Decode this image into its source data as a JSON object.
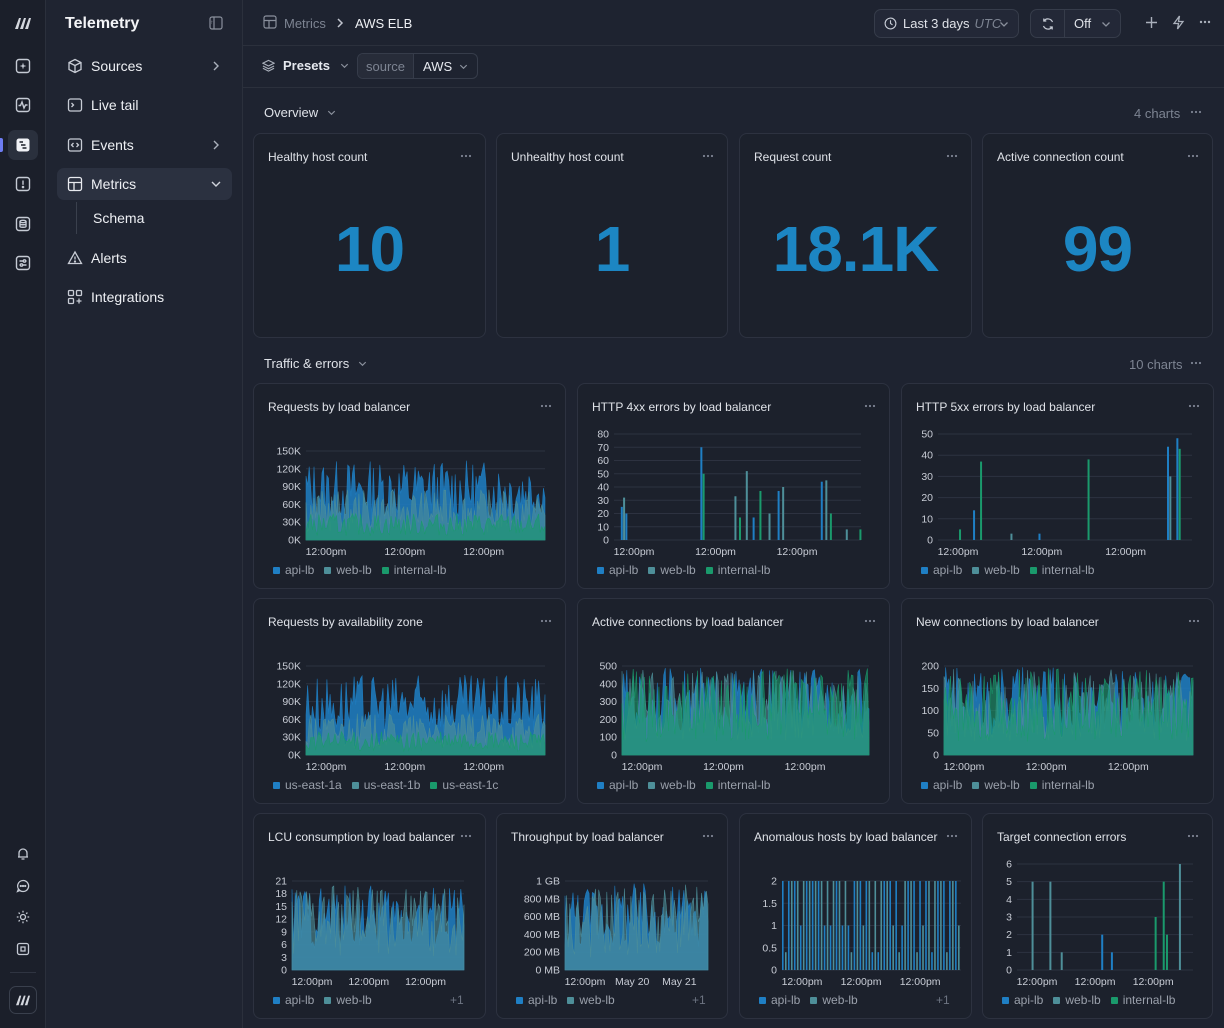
{
  "colors": {
    "accent": "#1c86c3",
    "api": "#1f7fc4",
    "web": "#4e8f99",
    "internal": "#1a9a6c",
    "grid": "#2d3240",
    "tick": "#c9cdd6"
  },
  "sidebar": {
    "title": "Telemetry",
    "items": [
      {
        "label": "Sources",
        "icon": "cube-icon",
        "chevron": "right"
      },
      {
        "label": "Live tail",
        "icon": "terminal-icon"
      },
      {
        "label": "Events",
        "icon": "code-icon",
        "chevron": "right"
      },
      {
        "label": "Metrics",
        "icon": "dashboard-icon",
        "chevron": "down",
        "active": true
      },
      {
        "label": "Schema",
        "sub": true
      },
      {
        "label": "Alerts",
        "icon": "warning-icon"
      },
      {
        "label": "Integrations",
        "icon": "integrations-icon"
      }
    ]
  },
  "breadcrumb": {
    "parent": "Metrics",
    "current": "AWS ELB"
  },
  "toolbar": {
    "time_range": "Last 3 days",
    "timezone": "UTC",
    "refresh": "Off"
  },
  "filters": {
    "presets": "Presets",
    "filter_key": "source",
    "filter_value": "AWS"
  },
  "overview": {
    "title": "Overview",
    "count": "4 charts",
    "stats": [
      {
        "title": "Healthy host count",
        "value": "10"
      },
      {
        "title": "Unhealthy host count",
        "value": "1"
      },
      {
        "title": "Request count",
        "value": "18.1K"
      },
      {
        "title": "Active connection count",
        "value": "99"
      }
    ]
  },
  "traffic": {
    "title": "Traffic & errors",
    "count": "10 charts"
  },
  "chart_data": [
    {
      "title": "Requests by load balancer",
      "type": "area",
      "x_labels": [
        "12:00pm",
        "12:00pm",
        "12:00pm"
      ],
      "y_ticks": [
        "0K",
        "30K",
        "60K",
        "90K",
        "120K",
        "150K"
      ],
      "ylim": [
        0,
        150000
      ],
      "series": [
        {
          "name": "api-lb",
          "max": 135000
        },
        {
          "name": "web-lb",
          "max": 85000
        },
        {
          "name": "internal-lb",
          "max": 45000
        }
      ]
    },
    {
      "title": "HTTP 4xx errors by load balancer",
      "type": "bar",
      "x_labels": [
        "12:00pm",
        "12:00pm",
        "12:00pm"
      ],
      "y_ticks": [
        "0",
        "10",
        "20",
        "30",
        "40",
        "50",
        "60",
        "70",
        "80"
      ],
      "ylim": [
        0,
        80
      ],
      "series": [
        {
          "name": "api-lb"
        },
        {
          "name": "web-lb"
        },
        {
          "name": "internal-lb"
        }
      ],
      "bars": [
        [
          0.03,
          25,
          "api"
        ],
        [
          0.04,
          32,
          "web"
        ],
        [
          0.05,
          20,
          "api"
        ],
        [
          0.38,
          70,
          "api"
        ],
        [
          0.39,
          50,
          "internal"
        ],
        [
          0.53,
          33,
          "web"
        ],
        [
          0.55,
          17,
          "internal"
        ],
        [
          0.58,
          52,
          "web"
        ],
        [
          0.61,
          17,
          "api"
        ],
        [
          0.64,
          37,
          "internal"
        ],
        [
          0.68,
          20,
          "web"
        ],
        [
          0.72,
          37,
          "api"
        ],
        [
          0.74,
          40,
          "web"
        ],
        [
          0.91,
          44,
          "api"
        ],
        [
          0.93,
          45,
          "web"
        ],
        [
          0.95,
          20,
          "internal"
        ],
        [
          1.02,
          8,
          "web"
        ],
        [
          1.08,
          8,
          "internal"
        ]
      ]
    },
    {
      "title": "HTTP 5xx errors by load balancer",
      "type": "bar",
      "x_labels": [
        "12:00pm",
        "12:00pm",
        "12:00pm"
      ],
      "y_ticks": [
        "0",
        "10",
        "20",
        "30",
        "40",
        "50"
      ],
      "ylim": [
        0,
        50
      ],
      "series": [
        {
          "name": "api-lb"
        },
        {
          "name": "web-lb"
        },
        {
          "name": "internal-lb"
        }
      ],
      "bars": [
        [
          0.09,
          5,
          "internal"
        ],
        [
          0.15,
          14,
          "api"
        ],
        [
          0.18,
          37,
          "internal"
        ],
        [
          0.31,
          3,
          "web"
        ],
        [
          0.43,
          3,
          "api"
        ],
        [
          0.64,
          38,
          "internal"
        ],
        [
          0.98,
          44,
          "api"
        ],
        [
          0.99,
          30,
          "web"
        ],
        [
          1.02,
          48,
          "api"
        ],
        [
          1.03,
          43,
          "internal"
        ]
      ]
    },
    {
      "title": "Requests by availability zone",
      "type": "area",
      "x_labels": [
        "12:00pm",
        "12:00pm",
        "12:00pm"
      ],
      "y_ticks": [
        "0K",
        "30K",
        "60K",
        "90K",
        "120K",
        "150K"
      ],
      "ylim": [
        0,
        150000
      ],
      "series": [
        {
          "name": "us-east-1a",
          "max": 135000
        },
        {
          "name": "us-east-1b",
          "max": 70000
        },
        {
          "name": "us-east-1c",
          "max": 40000
        }
      ]
    },
    {
      "title": "Active connections by load balancer",
      "type": "area",
      "x_labels": [
        "12:00pm",
        "12:00pm",
        "12:00pm"
      ],
      "y_ticks": [
        "0",
        "100",
        "200",
        "300",
        "400",
        "500"
      ],
      "ylim": [
        0,
        500
      ],
      "series": [
        {
          "name": "api-lb",
          "max": 490
        },
        {
          "name": "web-lb",
          "max": 480
        },
        {
          "name": "internal-lb",
          "max": 490
        }
      ]
    },
    {
      "title": "New connections by load balancer",
      "type": "area",
      "x_labels": [
        "12:00pm",
        "12:00pm",
        "12:00pm"
      ],
      "y_ticks": [
        "0",
        "50",
        "100",
        "150",
        "200"
      ],
      "ylim": [
        0,
        200
      ],
      "series": [
        {
          "name": "api-lb",
          "max": 198
        },
        {
          "name": "web-lb",
          "max": 195
        },
        {
          "name": "internal-lb",
          "max": 195
        }
      ]
    },
    {
      "title": "LCU consumption by load balancer",
      "type": "area",
      "x_labels": [
        "12:00pm",
        "12:00pm",
        "12:00pm"
      ],
      "y_ticks": [
        "0",
        "3",
        "6",
        "9",
        "12",
        "15",
        "18",
        "21"
      ],
      "ylim": [
        0,
        21
      ],
      "series": [
        {
          "name": "api-lb",
          "max": 20
        },
        {
          "name": "web-lb",
          "max": 20
        }
      ],
      "more": "+1"
    },
    {
      "title": "Throughput by load balancer",
      "type": "area",
      "x_labels": [
        "12:00pm",
        "May 20",
        "May 21"
      ],
      "y_ticks": [
        "0 MB",
        "200 MB",
        "400 MB",
        "600 MB",
        "800 MB",
        "1 GB"
      ],
      "ylim": [
        0,
        1000
      ],
      "series": [
        {
          "name": "api-lb",
          "max": 980
        },
        {
          "name": "web-lb",
          "max": 960
        }
      ],
      "more": "+1"
    },
    {
      "title": "Anomalous hosts by load balancer",
      "type": "bar",
      "x_labels": [
        "12:00pm",
        "12:00pm",
        "12:00pm"
      ],
      "y_ticks": [
        "0",
        "0.5",
        "1",
        "1.5",
        "2"
      ],
      "ylim": [
        0,
        2
      ],
      "series": [
        {
          "name": "api-lb"
        },
        {
          "name": "web-lb"
        }
      ],
      "more": "+1"
    },
    {
      "title": "Target connection errors",
      "type": "bar",
      "x_labels": [
        "12:00pm",
        "12:00pm",
        "12:00pm"
      ],
      "y_ticks": [
        "0",
        "1",
        "2",
        "3",
        "4",
        "5",
        "6"
      ],
      "ylim": [
        0,
        6
      ],
      "series": [
        {
          "name": "api-lb"
        },
        {
          "name": "web-lb"
        },
        {
          "name": "internal-lb"
        }
      ],
      "bars": [
        [
          0.09,
          5,
          "web"
        ],
        [
          0.2,
          5,
          "web"
        ],
        [
          0.27,
          1,
          "web"
        ],
        [
          0.52,
          2,
          "api"
        ],
        [
          0.58,
          1,
          "api"
        ],
        [
          0.85,
          3,
          "internal"
        ],
        [
          0.9,
          5,
          "internal"
        ],
        [
          0.92,
          2,
          "internal"
        ],
        [
          1.0,
          6,
          "web"
        ]
      ]
    }
  ]
}
